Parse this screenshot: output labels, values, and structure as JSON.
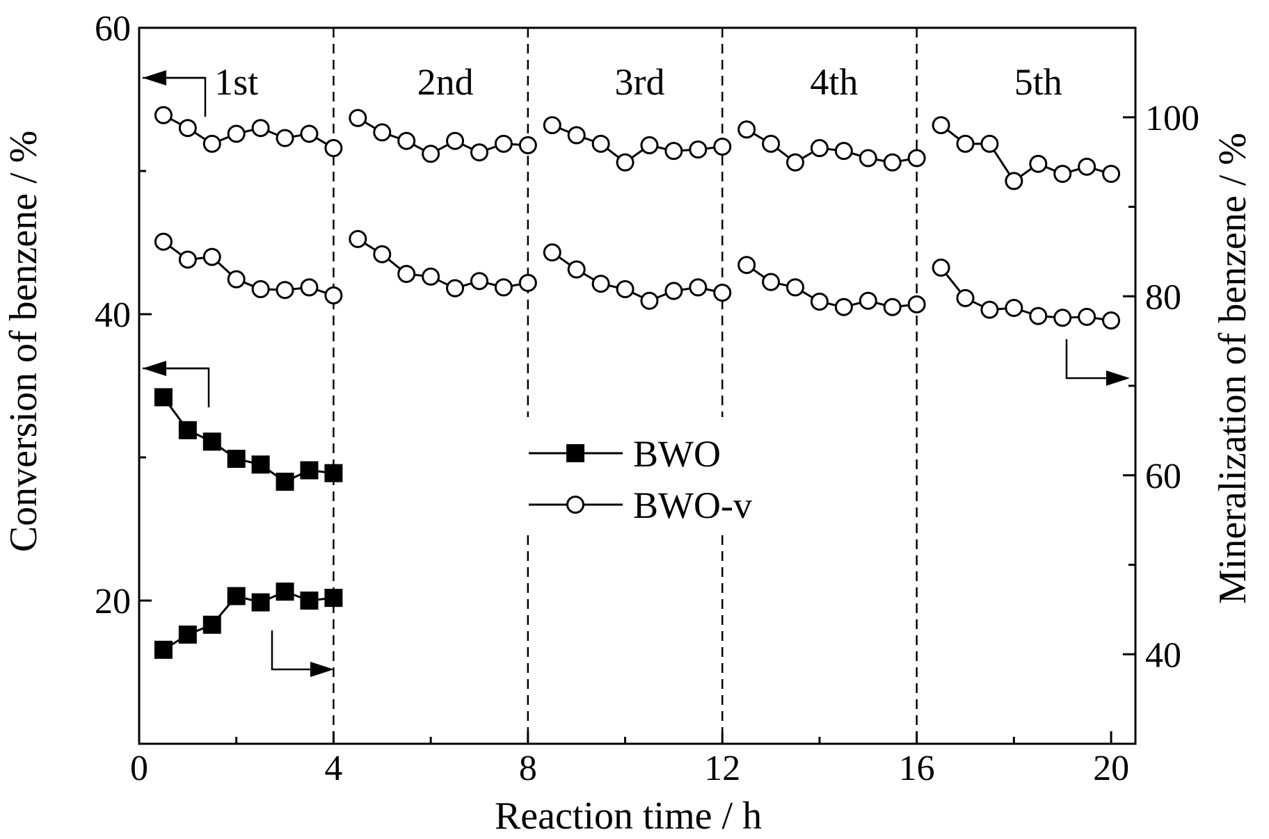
{
  "chart_data": {
    "type": "line",
    "xlabel": "Reaction time / h",
    "ylabel_left": "Conversion of benzene / %",
    "ylabel_right": "Mineralization of benzene / %",
    "xlim": [
      0,
      20.5
    ],
    "ylim_left": [
      10,
      60
    ],
    "ylim_right": [
      30,
      110
    ],
    "x_ticks": [
      0,
      4,
      8,
      12,
      16,
      20
    ],
    "x_tick_labels": [
      "0",
      "4",
      "8",
      "12",
      "16",
      "20"
    ],
    "y_left_ticks": [
      20,
      40,
      60
    ],
    "y_left_tick_labels": [
      "20",
      "40",
      "60"
    ],
    "y_left_minor_ticks": [
      30,
      50
    ],
    "y_right_ticks": [
      40,
      60,
      80,
      100
    ],
    "y_right_tick_labels": [
      "40",
      "60",
      "80",
      "100"
    ],
    "y_right_minor_ticks": [
      50,
      70,
      90
    ],
    "cycle_dividers": [
      4,
      8,
      12,
      16
    ],
    "cycle_labels": [
      {
        "label": "1st",
        "x": 2
      },
      {
        "label": "2nd",
        "x": 6.3
      },
      {
        "label": "3rd",
        "x": 10.3
      },
      {
        "label": "4th",
        "x": 14.3
      },
      {
        "label": "5th",
        "x": 18.5
      }
    ],
    "series": [
      {
        "name": "BWO",
        "axis": "left",
        "marker": "filled-square",
        "x": [
          0.5,
          1,
          1.5,
          2,
          2.5,
          3,
          3.5,
          4
        ],
        "values": [
          34.2,
          31.9,
          31.1,
          29.9,
          29.5,
          28.3,
          29.1,
          28.9
        ]
      },
      {
        "name": "BWO",
        "axis": "right",
        "marker": "filled-square",
        "x": [
          0.5,
          1,
          1.5,
          2,
          2.5,
          3,
          3.5,
          4
        ],
        "values": [
          40.5,
          42.2,
          43.3,
          46.5,
          45.8,
          47.0,
          46.0,
          46.3
        ]
      },
      {
        "name": "BWO-v",
        "axis": "left",
        "marker": "open-circle",
        "x": [
          0.5,
          1,
          1.5,
          2,
          2.5,
          3,
          3.5,
          4,
          4.5,
          5,
          5.5,
          6,
          6.5,
          7,
          7.5,
          8,
          8.5,
          9,
          9.5,
          10,
          10.5,
          11,
          11.5,
          12,
          12.5,
          13,
          13.5,
          14,
          14.5,
          15,
          15.5,
          16,
          16.5,
          17,
          17.5,
          18,
          18.5,
          19,
          19.5,
          20
        ],
        "values": [
          53.9,
          53.0,
          51.9,
          52.6,
          53.0,
          52.3,
          52.6,
          51.6,
          53.7,
          52.7,
          52.1,
          51.2,
          52.1,
          51.3,
          51.9,
          51.8,
          53.2,
          52.5,
          51.9,
          50.6,
          51.8,
          51.4,
          51.5,
          51.7,
          52.9,
          51.9,
          50.6,
          51.6,
          51.4,
          50.9,
          50.6,
          50.9,
          53.2,
          51.9,
          51.9,
          49.3,
          50.5,
          49.8,
          50.3,
          49.8
        ]
      },
      {
        "name": "BWO-v",
        "axis": "right",
        "marker": "open-circle",
        "x": [
          0.5,
          1,
          1.5,
          2,
          2.5,
          3,
          3.5,
          4,
          4.5,
          5,
          5.5,
          6,
          6.5,
          7,
          7.5,
          8,
          8.5,
          9,
          9.5,
          10,
          10.5,
          11,
          11.5,
          12,
          12.5,
          13,
          13.5,
          14,
          14.5,
          15,
          15.5,
          16,
          16.5,
          17,
          17.5,
          18,
          18.5,
          19,
          19.5,
          20
        ],
        "values": [
          86.1,
          84.1,
          84.4,
          81.9,
          80.8,
          80.7,
          81.0,
          80.1,
          86.4,
          84.7,
          82.5,
          82.2,
          80.9,
          81.7,
          81.0,
          81.5,
          84.9,
          83.0,
          81.4,
          80.8,
          79.5,
          80.6,
          81.0,
          80.4,
          83.5,
          81.6,
          81.0,
          79.4,
          78.8,
          79.5,
          78.8,
          79.1,
          83.2,
          79.8,
          78.5,
          78.7,
          77.8,
          77.6,
          77.7,
          77.3
        ]
      }
    ],
    "legend": {
      "placement": "center",
      "entries": [
        {
          "label": "BWO",
          "marker": "filled-square"
        },
        {
          "label": "BWO-v",
          "marker": "open-circle"
        }
      ]
    },
    "axis_arrows": [
      {
        "series_index": 2,
        "points_to": "left"
      },
      {
        "series_index": 0,
        "points_to": "left"
      },
      {
        "series_index": 1,
        "points_to": "right"
      },
      {
        "series_index": 3,
        "points_to": "right"
      }
    ],
    "grid": false
  }
}
